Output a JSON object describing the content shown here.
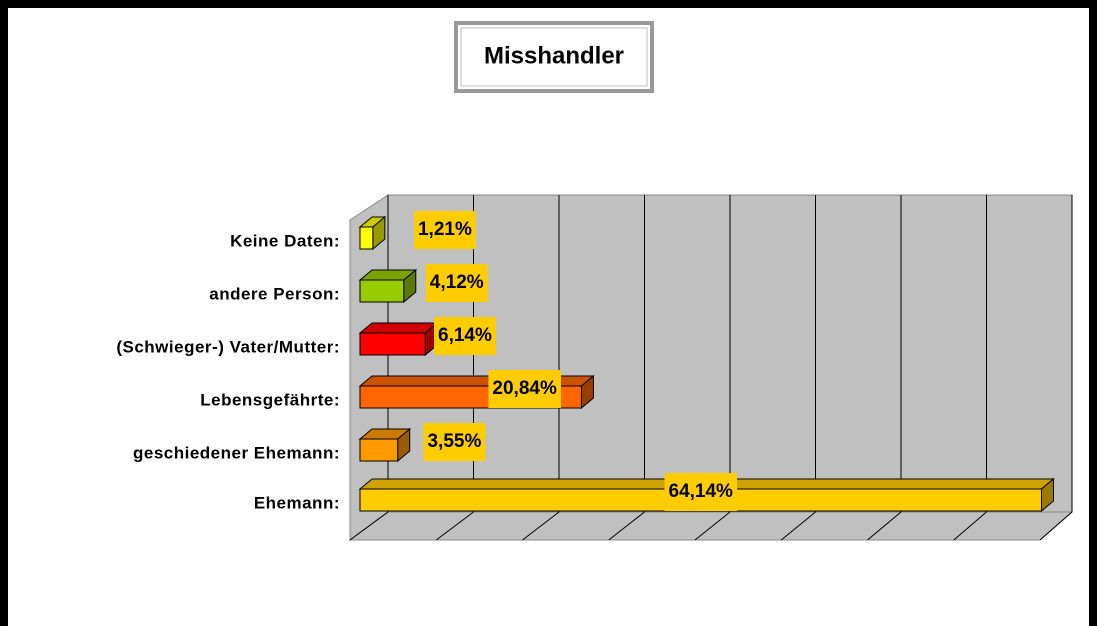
{
  "chart_data": {
    "type": "bar3d",
    "title": "Misshandler",
    "categories": [
      "Keine Daten:",
      "andere Person:",
      "(Schwieger-) Vater/Mutter:",
      "Lebensgefährte:",
      "geschiedener Ehemann:",
      "Ehemann:"
    ],
    "values": [
      1.21,
      4.12,
      6.14,
      20.84,
      3.55,
      64.14
    ],
    "value_labels": [
      "1,21%",
      "4,12%",
      "6,14%",
      "20,84%",
      "3,55%",
      "64,14%"
    ],
    "colors": [
      "#ffff00",
      "#99cc00",
      "#ff0000",
      "#ff6600",
      "#ff9900",
      "#ffcc00"
    ],
    "xlim": [
      0,
      64
    ],
    "xticks": [
      0,
      8,
      16,
      24,
      32,
      40,
      48,
      56,
      64
    ],
    "grid": true
  }
}
